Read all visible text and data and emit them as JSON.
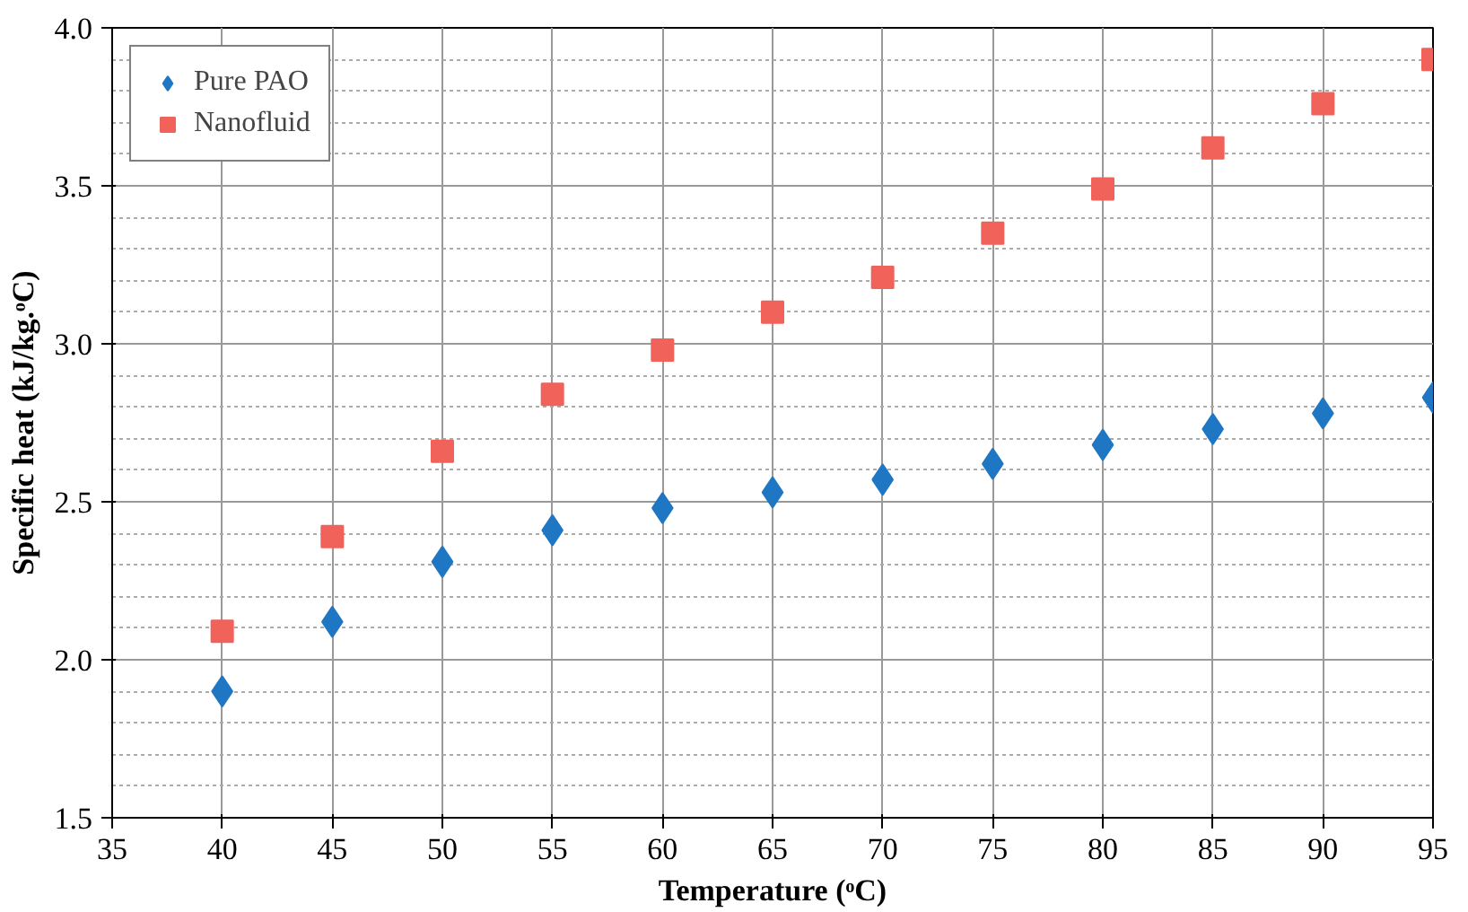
{
  "chart_data": {
    "type": "scatter",
    "xlabel": "Temperature (ᵒC)",
    "ylabel": "Specific heat (kJ/kg.ᵒC)",
    "x": [
      40,
      45,
      50,
      55,
      60,
      65,
      70,
      75,
      80,
      85,
      90,
      95
    ],
    "series": [
      {
        "name": "Pure PAO",
        "color": "#1f77c4",
        "marker": "diamond",
        "values": [
          1.9,
          2.12,
          2.31,
          2.41,
          2.48,
          2.53,
          2.57,
          2.62,
          2.68,
          2.73,
          2.78,
          2.83
        ]
      },
      {
        "name": "Nanofluid",
        "color": "#f0625a",
        "marker": "square",
        "values": [
          2.09,
          2.39,
          2.66,
          2.84,
          2.98,
          3.1,
          3.21,
          3.35,
          3.49,
          3.62,
          3.76,
          3.9
        ]
      }
    ],
    "xlim": [
      35,
      95
    ],
    "xticks": [
      35,
      40,
      45,
      50,
      55,
      60,
      65,
      70,
      75,
      80,
      85,
      90,
      95
    ],
    "ylim": [
      1.5,
      4.0
    ],
    "yticks": [
      1.5,
      {
        "value": 2,
        "label": "2.0"
      },
      2.5,
      {
        "value": 3,
        "label": "3.0"
      },
      3.5,
      {
        "value": 4,
        "label": "4.0"
      }
    ],
    "grid": true,
    "legend": "top left"
  }
}
